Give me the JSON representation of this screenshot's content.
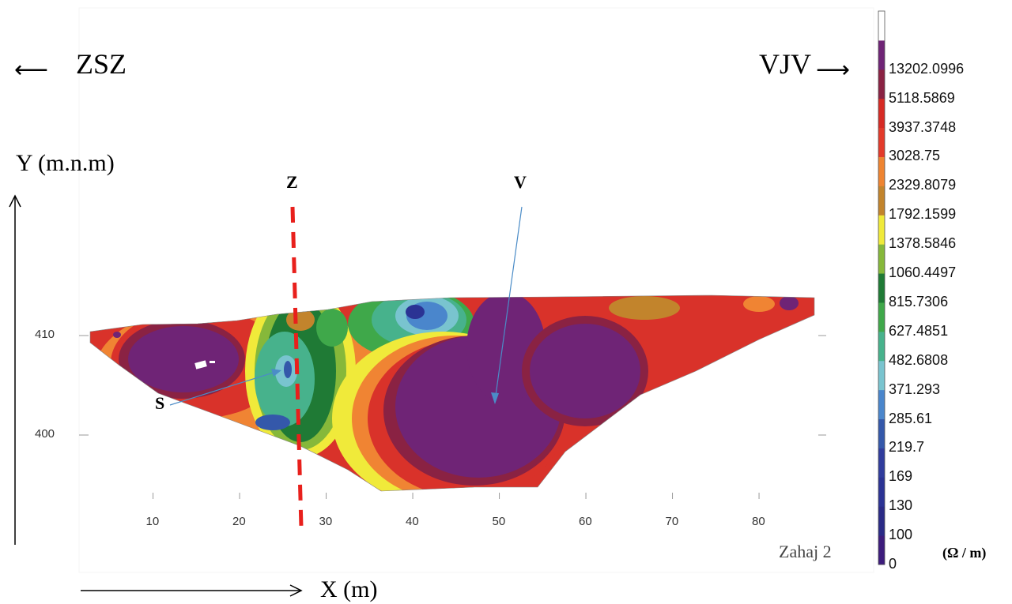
{
  "chart_data": {
    "type": "heatmap",
    "title": "",
    "caption": "Zahaj 2",
    "xlabel": "X (m)",
    "ylabel": "Y (m.n.m)",
    "x_ticks": [
      10,
      20,
      30,
      40,
      50,
      60,
      70,
      80
    ],
    "y_ticks": [
      400,
      410
    ],
    "xlim": [
      1,
      86
    ],
    "ylim": [
      395,
      411
    ],
    "direction_left": "ZSZ",
    "direction_right": "VJV",
    "colorbar": {
      "unit": "(Ω / m)",
      "levels": [
        "0",
        "100",
        "130",
        "169",
        "219.7",
        "285.61",
        "371.293",
        "482.6808",
        "627.4851",
        "815.7306",
        "1060.4497",
        "1378.5846",
        "1792.1599",
        "2329.8079",
        "3028.75",
        "3937.3748",
        "5118.5869",
        "13202.0996"
      ],
      "colors": [
        "#3d1c7c",
        "#2a2a86",
        "#2b3394",
        "#303c9d",
        "#3458aa",
        "#4a86cc",
        "#79c4cf",
        "#47b28c",
        "#3fa84a",
        "#1f7a35",
        "#86b83a",
        "#f0ea3a",
        "#c2842c",
        "#ee8431",
        "#e33a2a",
        "#d62a24",
        "#8a2243",
        "#6f2476",
        "#ffffff"
      ]
    },
    "annotations": [
      {
        "label": "Z",
        "type": "boundary-line",
        "x": 26
      },
      {
        "label": "V",
        "type": "arrow"
      },
      {
        "label": "S",
        "type": "arrow"
      }
    ]
  }
}
